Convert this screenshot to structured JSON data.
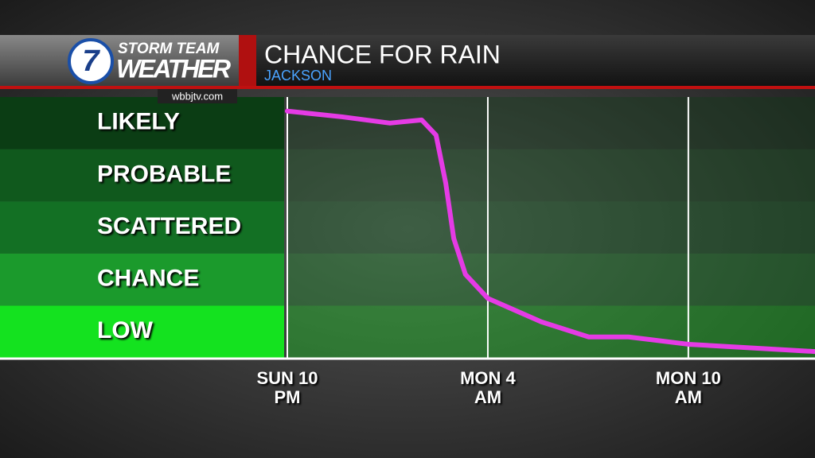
{
  "brand": {
    "logo_number": "7",
    "line1": "STORM TEAM",
    "line2": "WEATHER",
    "website": "wbbjtv.com"
  },
  "chart_data": {
    "type": "line",
    "title": "CHANCE FOR RAIN",
    "subtitle": "JACKSON",
    "x": [
      0,
      1.64,
      3.07,
      4.02,
      4.45,
      4.74,
      4.98,
      5.33,
      6.0,
      7.6,
      9.02,
      10.21,
      12.0,
      15.79
    ],
    "values": [
      4.73,
      4.62,
      4.5,
      4.56,
      4.27,
      3.35,
      2.29,
      1.6,
      1.14,
      0.69,
      0.4,
      0.4,
      0.26,
      0.12
    ],
    "color": "#e53be5",
    "xlim": [
      0,
      15.79
    ],
    "xticks": [
      {
        "value": 0,
        "label": "SUN 10 PM"
      },
      {
        "value": 6,
        "label": "MON 4 AM"
      },
      {
        "value": 12,
        "label": "MON 10 AM"
      }
    ],
    "ylim": [
      0,
      5
    ],
    "yticks": [
      {
        "value": 4.5,
        "label": "LIKELY"
      },
      {
        "value": 3.5,
        "label": "PROBABLE"
      },
      {
        "value": 2.5,
        "label": "SCATTERED"
      },
      {
        "value": 1.5,
        "label": "CHANCE"
      },
      {
        "value": 0.5,
        "label": "LOW"
      }
    ],
    "band_colors": [
      "#0b3d14",
      "#10591d",
      "#137024",
      "#1b9a2c",
      "#14e21f"
    ]
  }
}
